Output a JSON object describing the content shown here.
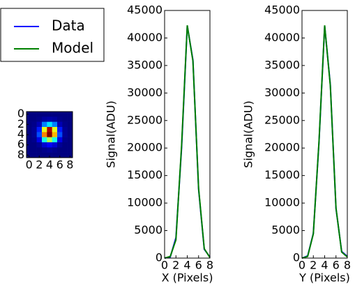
{
  "chart_data": [
    {
      "type": "heatmap",
      "xticks": [
        0,
        2,
        4,
        6,
        8
      ],
      "yticks": [
        0,
        2,
        4,
        6,
        8
      ],
      "xlim": [
        -0.5,
        8.5
      ],
      "ylim": [
        -0.5,
        8.5
      ],
      "values": [
        [
          0,
          0,
          0,
          0,
          0,
          0,
          0,
          0,
          0
        ],
        [
          0,
          0,
          0.01,
          0.03,
          0.04,
          0.03,
          0.01,
          0,
          0
        ],
        [
          0,
          0.01,
          0.05,
          0.25,
          0.35,
          0.25,
          0.05,
          0.01,
          0
        ],
        [
          0,
          0.02,
          0.15,
          0.6,
          0.95,
          0.6,
          0.15,
          0.02,
          0
        ],
        [
          0,
          0.02,
          0.2,
          0.75,
          1.0,
          0.7,
          0.2,
          0.02,
          0
        ],
        [
          0,
          0.01,
          0.1,
          0.4,
          0.55,
          0.4,
          0.1,
          0.01,
          0
        ],
        [
          0,
          0,
          0.02,
          0.08,
          0.12,
          0.08,
          0.02,
          0,
          0
        ],
        [
          0,
          0,
          0,
          0.01,
          0.02,
          0.01,
          0,
          0,
          0
        ],
        [
          0,
          0,
          0,
          0,
          0,
          0,
          0,
          0,
          0
        ]
      ]
    },
    {
      "type": "line",
      "x_label": "X (Pixels)",
      "y_label": "Signal(ADU)",
      "x": [
        0,
        1,
        2,
        3,
        4,
        5,
        6,
        7,
        8
      ],
      "xlim": [
        0,
        8
      ],
      "xticks": [
        0,
        2,
        4,
        6,
        8
      ],
      "ylim": [
        0,
        45000
      ],
      "yticks": [
        0,
        5000,
        10000,
        15000,
        20000,
        25000,
        30000,
        35000,
        40000,
        45000
      ],
      "series": [
        {
          "name": "Data",
          "color": "#0000ff",
          "values": [
            0,
            200,
            3700,
            20000,
            42200,
            36000,
            12500,
            1600,
            200
          ]
        },
        {
          "name": "Model",
          "color": "#008000",
          "values": [
            0,
            300,
            3300,
            20500,
            42300,
            35800,
            12700,
            1700,
            100
          ]
        }
      ]
    },
    {
      "type": "line",
      "x_label": "Y (Pixels)",
      "y_label": "Signal(ADU)",
      "x": [
        0,
        1,
        2,
        3,
        4,
        5,
        6,
        7,
        8
      ],
      "xlim": [
        0,
        8
      ],
      "xticks": [
        0,
        2,
        4,
        6,
        8
      ],
      "ylim": [
        0,
        45000
      ],
      "yticks": [
        0,
        5000,
        10000,
        15000,
        20000,
        25000,
        30000,
        35000,
        40000,
        45000
      ],
      "series": [
        {
          "name": "Data",
          "color": "#0000ff",
          "values": [
            0,
            400,
            4500,
            21000,
            42200,
            31500,
            9000,
            1200,
            300
          ]
        },
        {
          "name": "Model",
          "color": "#008000",
          "values": [
            0,
            300,
            4400,
            21200,
            42300,
            31300,
            9100,
            1100,
            200
          ]
        }
      ]
    }
  ]
}
